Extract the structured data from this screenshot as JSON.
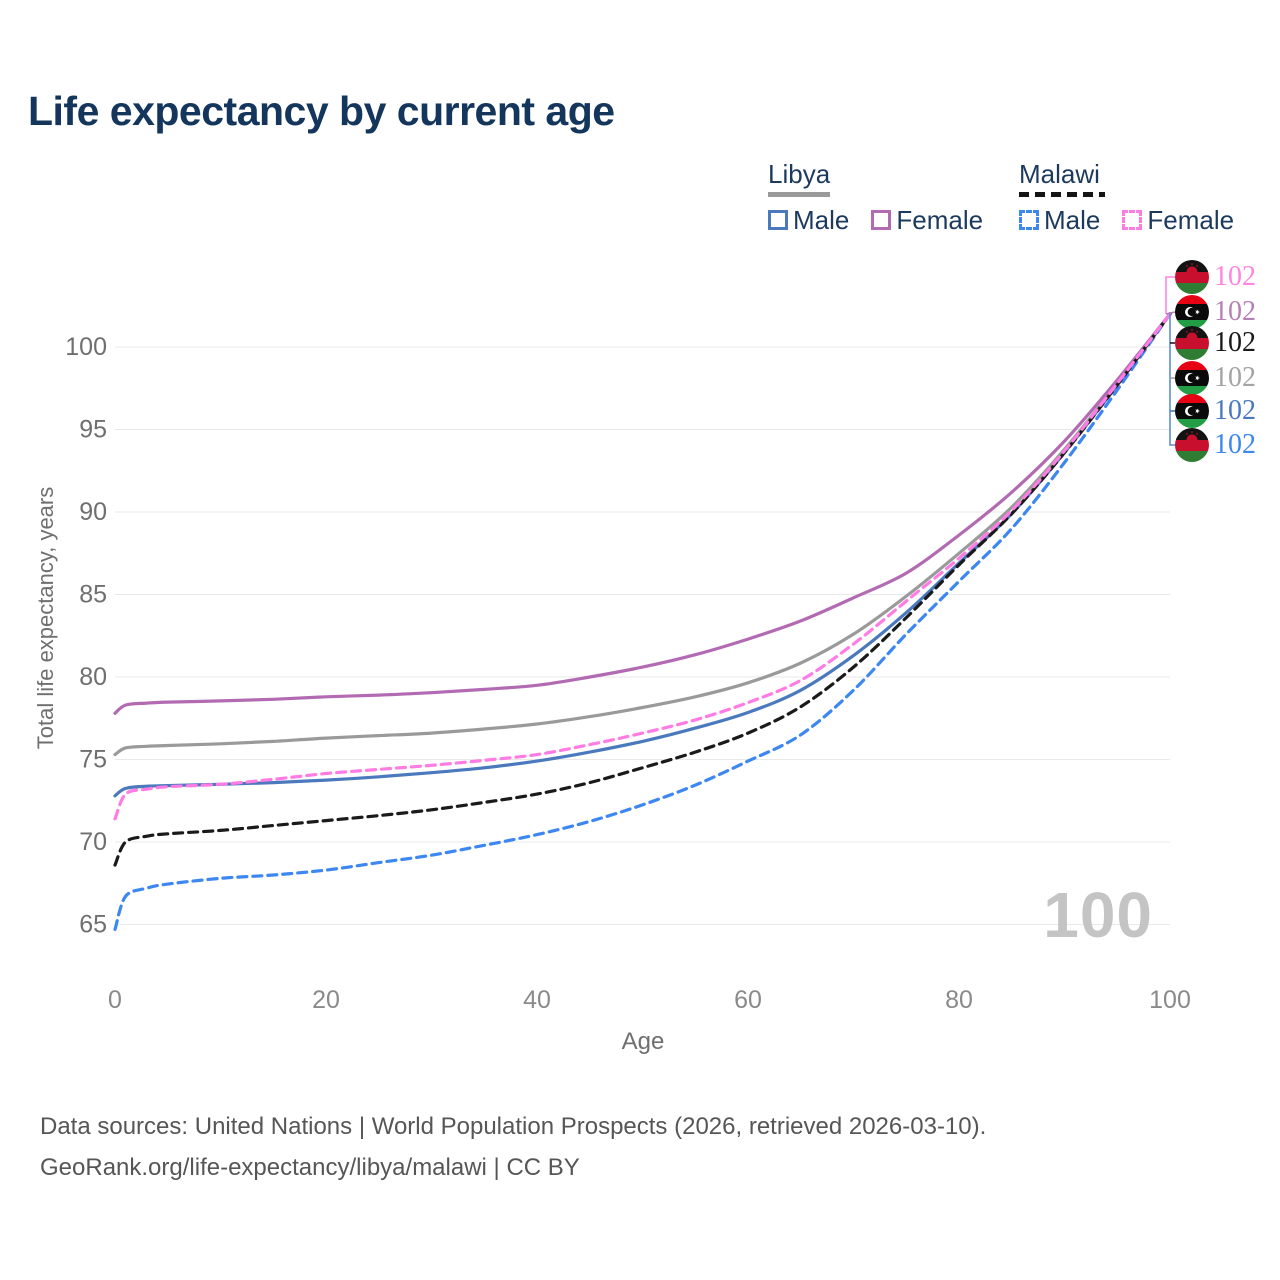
{
  "title": "Life expectancy by current age",
  "legend": {
    "groups": [
      {
        "country": "Libya",
        "line_style": "solid",
        "items": [
          {
            "label": "Male",
            "color": "#4a79bd"
          },
          {
            "label": "Female",
            "color": "#b26bb2"
          }
        ]
      },
      {
        "country": "Malawi",
        "line_style": "dashed",
        "items": [
          {
            "label": "Male",
            "color": "#3d87f0"
          },
          {
            "label": "Female",
            "color": "#ff7ce5"
          }
        ]
      }
    ]
  },
  "end_labels": [
    {
      "series": "Malawi Female",
      "flag": "malawi",
      "value": "102",
      "color": "#ff85e0"
    },
    {
      "series": "Libya Female",
      "flag": "libya",
      "value": "102",
      "color": "#b580b5"
    },
    {
      "series": "Malawi",
      "flag": "malawi",
      "value": "102",
      "color": "#1a1a1a"
    },
    {
      "series": "Libya",
      "flag": "libya",
      "value": "102",
      "color": "#a3a3a3"
    },
    {
      "series": "Libya Male",
      "flag": "libya",
      "value": "102",
      "color": "#4a79bd"
    },
    {
      "series": "Malawi Male",
      "flag": "malawi",
      "value": "102",
      "color": "#3d87f0"
    }
  ],
  "watermark": "100",
  "footer": {
    "line1": "Data sources: United Nations | World Population Prospects (2026, retrieved 2026-03-10).",
    "line2": "GeoRank.org/life-expectancy/libya/malawi | CC BY"
  },
  "chart_data": {
    "type": "line",
    "title": "Life expectancy by current age",
    "xlabel": "Age",
    "ylabel": "Total life expectancy, years",
    "xlim": [
      0,
      100
    ],
    "ylim": [
      63.5,
      103
    ],
    "x_ticks": [
      0,
      20,
      40,
      60,
      80,
      100
    ],
    "y_ticks": [
      65,
      70,
      75,
      80,
      85,
      90,
      95,
      100
    ],
    "grid": "horizontal",
    "legend_position": "top-right",
    "x": [
      0,
      1,
      3,
      5,
      10,
      15,
      20,
      25,
      30,
      35,
      40,
      45,
      50,
      55,
      60,
      65,
      70,
      75,
      80,
      85,
      90,
      95,
      100
    ],
    "series": [
      {
        "name": "Libya",
        "country": "Libya",
        "sex": "Both",
        "color": "#9a9a9a",
        "dash": "solid",
        "values": [
          75.3,
          75.7,
          75.8,
          75.85,
          75.95,
          76.1,
          76.3,
          76.45,
          76.6,
          76.85,
          77.15,
          77.6,
          78.15,
          78.8,
          79.65,
          80.85,
          82.6,
          84.9,
          87.5,
          90.3,
          93.8,
          97.8,
          102
        ]
      },
      {
        "name": "Libya Female",
        "country": "Libya",
        "sex": "Female",
        "color": "#b26bb2",
        "dash": "solid",
        "values": [
          77.8,
          78.3,
          78.42,
          78.48,
          78.55,
          78.65,
          78.8,
          78.9,
          79.05,
          79.25,
          79.5,
          80.0,
          80.6,
          81.35,
          82.3,
          83.4,
          84.8,
          86.3,
          88.6,
          91.2,
          94.3,
          98.0,
          102
        ]
      },
      {
        "name": "Libya Male",
        "country": "Libya",
        "sex": "Male",
        "color": "#4a79bd",
        "dash": "solid",
        "values": [
          72.8,
          73.25,
          73.38,
          73.42,
          73.5,
          73.6,
          73.75,
          73.95,
          74.2,
          74.5,
          74.9,
          75.45,
          76.1,
          76.9,
          77.85,
          79.2,
          81.3,
          83.9,
          86.9,
          89.9,
          93.6,
          97.7,
          102
        ]
      },
      {
        "name": "Malawi Male",
        "country": "Malawi",
        "sex": "Male",
        "color": "#3d87f0",
        "dash": "dashed",
        "values": [
          64.7,
          66.7,
          67.2,
          67.45,
          67.8,
          68.0,
          68.3,
          68.75,
          69.2,
          69.8,
          70.45,
          71.25,
          72.25,
          73.45,
          74.9,
          76.5,
          79.2,
          82.6,
          85.8,
          89.0,
          93.0,
          97.4,
          102
        ]
      },
      {
        "name": "Malawi",
        "country": "Malawi",
        "sex": "Both",
        "color": "#1a1a1a",
        "dash": "dashed",
        "values": [
          68.6,
          70.0,
          70.35,
          70.5,
          70.7,
          71.0,
          71.3,
          71.6,
          71.95,
          72.4,
          72.9,
          73.6,
          74.5,
          75.45,
          76.6,
          78.2,
          80.6,
          83.6,
          86.8,
          89.9,
          93.6,
          97.7,
          102
        ]
      },
      {
        "name": "Malawi Female",
        "country": "Malawi",
        "sex": "Female",
        "color": "#ff7ce5",
        "dash": "dashed",
        "values": [
          71.4,
          72.9,
          73.2,
          73.35,
          73.5,
          73.8,
          74.15,
          74.4,
          74.65,
          74.95,
          75.3,
          75.9,
          76.6,
          77.4,
          78.45,
          79.8,
          82.0,
          84.6,
          87.2,
          90.1,
          93.7,
          97.8,
          102
        ]
      }
    ]
  }
}
